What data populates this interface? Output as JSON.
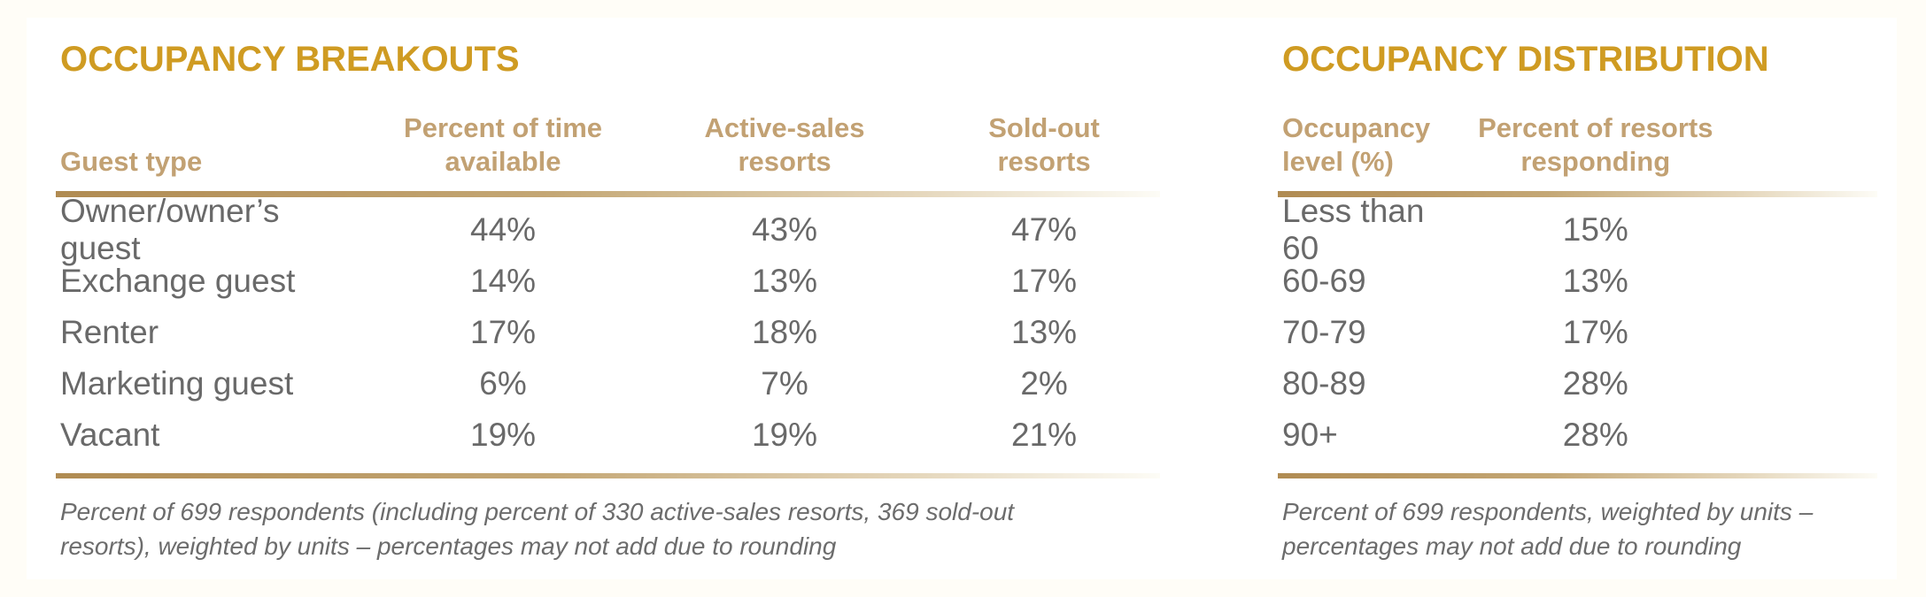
{
  "colors": {
    "page_background": "#FFFDF7",
    "card_background": "#FFFFFF",
    "title_gold": "#CF9B22",
    "header_tan": "#C2A173",
    "body_gray": "#696969",
    "rule_gradient_start": "#B08B52",
    "rule_gradient_end": "#FDFCF6"
  },
  "left_table": {
    "title": "OCCUPANCY BREAKOUTS",
    "columns": {
      "guest_type": "Guest type",
      "percent_time_available": "Percent of time\navailable",
      "active_sales_resorts": "Active-sales\nresorts",
      "sold_out_resorts": "Sold-out\nresorts"
    },
    "rows": [
      [
        "Owner/owner’s guest",
        "44%",
        "43%",
        "47%"
      ],
      [
        "Exchange guest",
        "14%",
        "13%",
        "17%"
      ],
      [
        "Renter",
        "17%",
        "18%",
        "13%"
      ],
      [
        "Marketing guest",
        "6%",
        "7%",
        "2%"
      ],
      [
        "Vacant",
        "19%",
        "19%",
        "21%"
      ]
    ],
    "footnote": "Percent of 699 respondents (including percent of 330 active-sales resorts, 369 sold-out resorts), weighted by units – percentages may not add due to rounding"
  },
  "right_table": {
    "title": "OCCUPANCY DISTRIBUTION",
    "columns": {
      "occupancy_level": "Occupancy\nlevel (%)",
      "percent_resorts_responding": "Percent of resorts\nresponding"
    },
    "rows": [
      [
        "Less than 60",
        "15%"
      ],
      [
        "60-69",
        "13%"
      ],
      [
        "70-79",
        "17%"
      ],
      [
        "80-89",
        "28%"
      ],
      [
        "90+",
        "28%"
      ]
    ],
    "footnote": "Percent of 699 respondents, weighted by units – percentages may not add due to rounding"
  }
}
